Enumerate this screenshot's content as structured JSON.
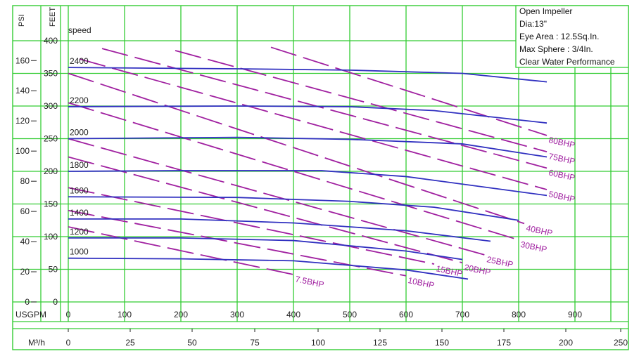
{
  "info_box": {
    "lines": [
      "Open Impeller",
      "Dia:13\"",
      "Eye Area : 12.5Sq.In.",
      "Max Sphere : 3/4In.",
      "Clear Water Performance"
    ]
  },
  "chart_data": {
    "type": "line",
    "grid": true,
    "colors": {
      "grid": "#33cc33",
      "speed_curve": "#3030c0",
      "bhp_curve": "#a020a0"
    },
    "x_axis": {
      "label": "USGPM",
      "ticks": [
        "0",
        "100",
        "200",
        "300",
        "400",
        "500",
        "600",
        "700",
        "800",
        "900"
      ],
      "range": [
        0,
        900
      ]
    },
    "x2_axis": {
      "label": "M³/h",
      "ticks": [
        "0",
        "25",
        "50",
        "75",
        "100",
        "125",
        "150",
        "175",
        "200",
        "250"
      ]
    },
    "y_axis_feet": {
      "label": "FEET",
      "ticks": [
        "0",
        "50",
        "100",
        "150",
        "200",
        "250",
        "300",
        "350",
        "400"
      ],
      "range": [
        0,
        400
      ]
    },
    "y_axis_psi": {
      "label": "PSI",
      "ticks": [
        "0",
        "20",
        "40",
        "60",
        "80",
        "100",
        "120",
        "140",
        "160"
      ]
    },
    "speed_header": "speed",
    "speed_series": [
      {
        "name": "2400",
        "x": [
          0,
          300,
          500,
          700,
          850
        ],
        "y": [
          359,
          357,
          355,
          350,
          337
        ]
      },
      {
        "name": "2200",
        "x": [
          0,
          300,
          500,
          650,
          850
        ],
        "y": [
          299,
          300,
          299,
          293,
          274
        ]
      },
      {
        "name": "2000",
        "x": [
          0,
          300,
          500,
          700,
          850
        ],
        "y": [
          250,
          252,
          249,
          242,
          222
        ]
      },
      {
        "name": "1800",
        "x": [
          0,
          200,
          450,
          600,
          850
        ],
        "y": [
          200,
          201,
          201,
          192,
          163
        ]
      },
      {
        "name": "1600",
        "x": [
          0,
          300,
          500,
          650,
          800
        ],
        "y": [
          161,
          160,
          154,
          145,
          125
        ]
      },
      {
        "name": "1400",
        "x": [
          0,
          200,
          400,
          600,
          750
        ],
        "y": [
          127,
          127,
          121,
          109,
          93
        ]
      },
      {
        "name": "1200",
        "x": [
          0,
          200,
          400,
          600,
          700
        ],
        "y": [
          98,
          98,
          94,
          78,
          65
        ]
      },
      {
        "name": "1000",
        "x": [
          0,
          200,
          400,
          600,
          710
        ],
        "y": [
          67,
          66,
          63,
          49,
          35
        ]
      }
    ],
    "bhp_series": [
      {
        "name": "7.5BHP",
        "x": [
          0,
          400
        ],
        "y": [
          115,
          42
        ]
      },
      {
        "name": "10BHP",
        "x": [
          0,
          600
        ],
        "y": [
          140,
          40
        ]
      },
      {
        "name": "15BHP",
        "x": [
          0,
          650
        ],
        "y": [
          175,
          58
        ]
      },
      {
        "name": "20BHP",
        "x": [
          0,
          700
        ],
        "y": [
          222,
          60
        ]
      },
      {
        "name": "25BHP",
        "x": [
          0,
          740
        ],
        "y": [
          250,
          72
        ]
      },
      {
        "name": "30BHP",
        "x": [
          0,
          800
        ],
        "y": [
          305,
          95
        ]
      },
      {
        "name": "40BHP",
        "x": [
          0,
          810
        ],
        "y": [
          350,
          120
        ]
      },
      {
        "name": "50BHP",
        "x": [
          20,
          850
        ],
        "y": [
          372,
          172
        ]
      },
      {
        "name": "60BHP",
        "x": [
          60,
          850
        ],
        "y": [
          388,
          205
        ]
      },
      {
        "name": "75BHP",
        "x": [
          190,
          850
        ],
        "y": [
          385,
          230
        ]
      },
      {
        "name": "80BHP",
        "x": [
          360,
          850
        ],
        "y": [
          390,
          255
        ]
      }
    ]
  }
}
